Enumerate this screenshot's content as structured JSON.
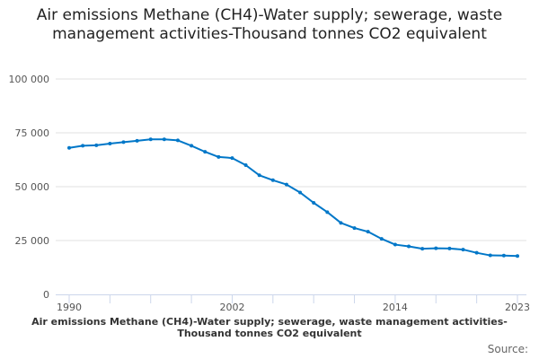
{
  "chart_data": {
    "type": "line",
    "title": "Air emissions Methane (CH4)-Water supply; sewerage, waste management activities-Thousand tonnes CO2 equivalent",
    "xlabel": "Air emissions Methane (CH4)-Water supply; sewerage, waste management activities-Thousand tonnes CO2 equivalent",
    "ylabel": "",
    "source_label": "Source:",
    "x": [
      1990,
      1991,
      1992,
      1993,
      1994,
      1995,
      1996,
      1997,
      1998,
      1999,
      2000,
      2001,
      2002,
      2003,
      2004,
      2005,
      2006,
      2007,
      2008,
      2009,
      2010,
      2011,
      2012,
      2013,
      2014,
      2015,
      2016,
      2017,
      2018,
      2019,
      2020,
      2021,
      2022,
      2023
    ],
    "series": [
      {
        "name": "Air emissions Methane (CH4)",
        "color": "#0077c8",
        "values": [
          68000,
          69000,
          69200,
          70000,
          70700,
          71300,
          72000,
          72000,
          71500,
          69000,
          66200,
          63800,
          63300,
          60000,
          55300,
          53000,
          51000,
          47300,
          42500,
          38200,
          33200,
          30800,
          29100,
          25800,
          23100,
          22300,
          21200,
          21400,
          21300,
          20800,
          19300,
          18100,
          18000,
          17800
        ]
      }
    ],
    "ylim": [
      0,
      100000
    ],
    "yticks": [
      0,
      25000,
      50000,
      75000,
      100000
    ],
    "ytick_labels": [
      "0",
      "25 000",
      "50 000",
      "75 000",
      "100 000"
    ],
    "xticks_labeled": [
      1990,
      2002,
      2014,
      2023
    ],
    "xtick_labels": [
      "1990",
      "2002",
      "2014",
      "2023"
    ],
    "grid": true,
    "legend": "none"
  }
}
